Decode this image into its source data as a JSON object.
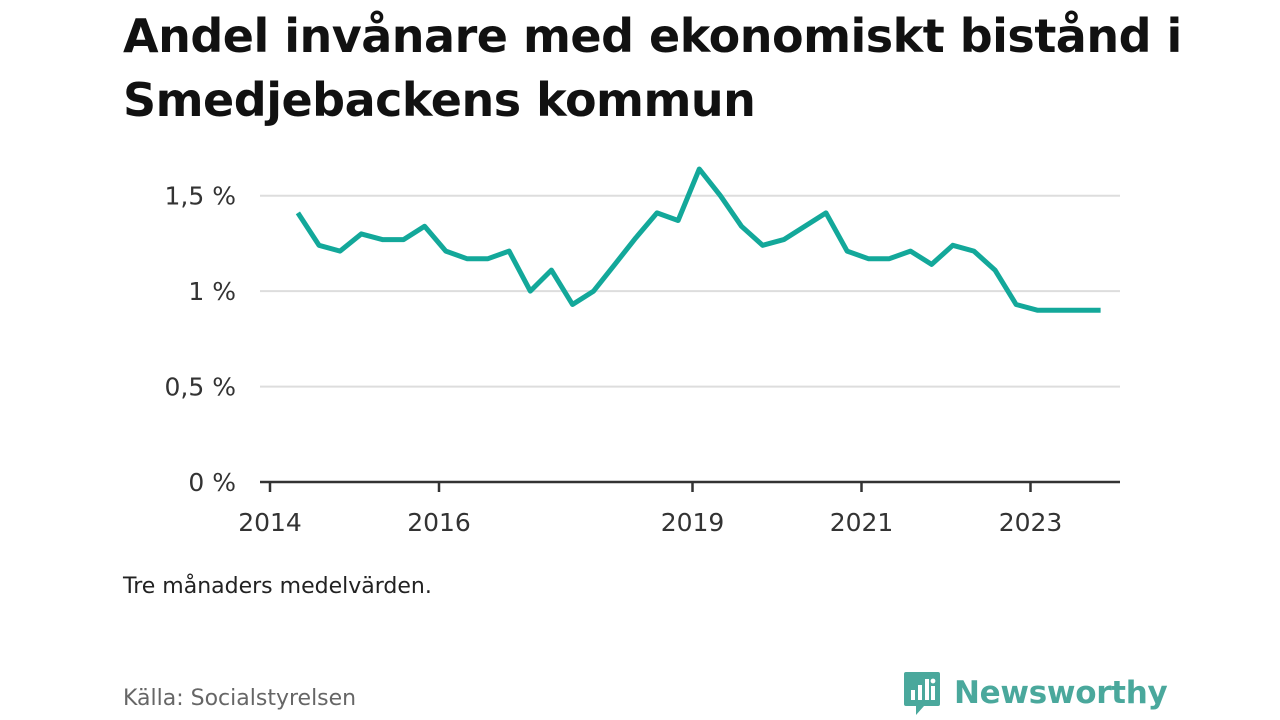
{
  "title": "Andel invånare med ekonomiskt bistånd i Smedjebackens kommun",
  "note": "Tre månaders medelvärden.",
  "source": "Källa: Socialstyrelsen",
  "brand": {
    "name": "Newsworthy",
    "icon": "newsworthy-logo-icon"
  },
  "colors": {
    "line": "#13a89a",
    "grid": "#dddddd",
    "axis": "#333333",
    "brand": "#4aa89c"
  },
  "chart_data": {
    "type": "line",
    "title": "Andel invånare med ekonomiskt bistånd i Smedjebackens kommun",
    "xlabel": "",
    "ylabel": "",
    "y_unit": "%",
    "ylim": [
      0,
      1.75
    ],
    "yticks": [
      0,
      0.5,
      1,
      1.5
    ],
    "ytick_labels": [
      "0 %",
      "0,5 %",
      "1 %",
      "1,5 %"
    ],
    "xlim": [
      2014,
      2024.5
    ],
    "xticks": [
      2014,
      2016,
      2019,
      2021,
      2023
    ],
    "xtick_labels": [
      "2014",
      "2016",
      "2019",
      "2021",
      "2023"
    ],
    "grid": true,
    "legend": "none",
    "series": [
      {
        "x": [
          2014.33,
          2014.58,
          2014.83,
          2015.08,
          2015.33,
          2015.58,
          2015.83,
          2016.08,
          2016.33,
          2016.58,
          2016.83,
          2017.08,
          2017.33,
          2017.58,
          2017.83,
          2018.08,
          2018.33,
          2018.58,
          2018.83,
          2019.08,
          2019.33,
          2019.58,
          2019.83,
          2020.08,
          2020.33,
          2020.58,
          2020.83,
          2021.08,
          2021.33,
          2021.58,
          2021.83,
          2022.08,
          2022.33,
          2022.58,
          2022.83,
          2023.08,
          2023.33,
          2023.58,
          2023.83
        ],
        "values": [
          1.41,
          1.24,
          1.21,
          1.3,
          1.27,
          1.27,
          1.34,
          1.21,
          1.17,
          1.17,
          1.21,
          1.0,
          1.11,
          0.93,
          1.0,
          1.14,
          1.28,
          1.41,
          1.37,
          1.64,
          1.5,
          1.34,
          1.24,
          1.27,
          1.34,
          1.41,
          1.21,
          1.17,
          1.17,
          1.21,
          1.14,
          1.24,
          1.21,
          1.11,
          0.93,
          0.9,
          0.9,
          0.9,
          0.9
        ]
      }
    ]
  }
}
